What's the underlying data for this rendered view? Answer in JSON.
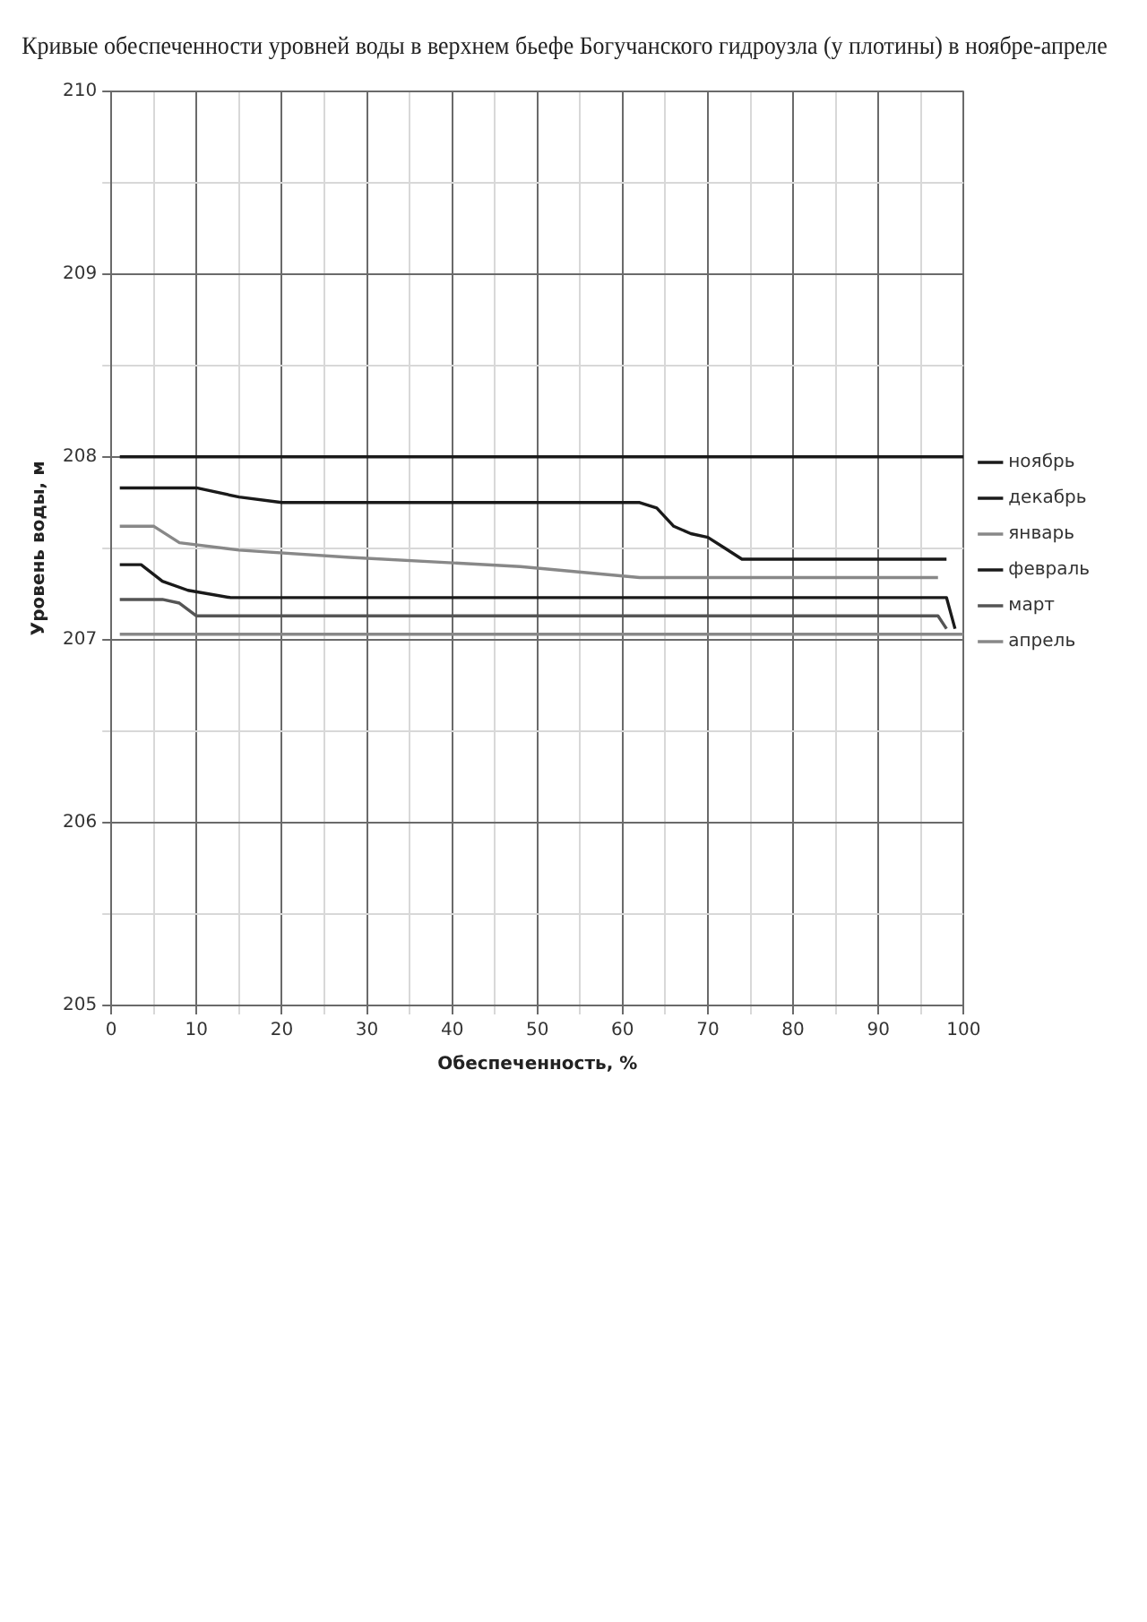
{
  "chart_data": {
    "type": "line",
    "title": "Кривые обеспеченности уровней воды в верхнем бьефе Богучанского гидроузла (у плотины) в ноябре-апреле",
    "xlabel": "Обеспеченность, %",
    "ylabel": "Уровень воды, м",
    "xlim": [
      0,
      100
    ],
    "xticks": [
      0,
      {
        "value": 5,
        "label": null
      },
      10,
      {
        "value": 15,
        "label": null
      },
      20,
      {
        "value": 25,
        "label": null
      },
      30,
      {
        "value": 35,
        "label": null
      },
      40,
      {
        "value": 45,
        "label": null
      },
      50,
      {
        "value": 55,
        "label": null
      },
      60,
      {
        "value": 65,
        "label": null
      },
      70,
      {
        "value": 75,
        "label": null
      },
      80,
      {
        "value": 85,
        "label": null
      },
      90,
      {
        "value": 95,
        "label": null
      },
      100
    ],
    "ylim": [
      205,
      210
    ],
    "yticks": [
      205,
      {
        "value": 205.5,
        "label": null
      },
      206,
      {
        "value": 206.5,
        "label": null
      },
      207,
      {
        "value": 207.5,
        "label": null
      },
      208,
      {
        "value": 208.5,
        "label": null
      },
      209,
      {
        "value": 209.5,
        "label": null
      },
      210
    ],
    "grid": true,
    "legend": "right",
    "marker": "none",
    "line_style": "solid",
    "series": [
      {
        "name": "ноябрь",
        "color": "#1a1a1a",
        "x": [
          1,
          100
        ],
        "values": [
          208.0,
          208.0
        ]
      },
      {
        "name": "декабрь",
        "color": "#1a1a1a",
        "x": [
          1,
          10,
          15,
          20,
          62,
          64,
          66,
          68,
          70,
          72,
          74,
          98
        ],
        "values": [
          207.83,
          207.83,
          207.78,
          207.75,
          207.75,
          207.72,
          207.62,
          207.58,
          207.56,
          207.5,
          207.44,
          207.44
        ]
      },
      {
        "name": "январь",
        "color": "#888888",
        "x": [
          1,
          5,
          8,
          15,
          28,
          48,
          62,
          97
        ],
        "values": [
          207.62,
          207.62,
          207.53,
          207.49,
          207.45,
          207.4,
          207.34,
          207.34
        ]
      },
      {
        "name": "февраль",
        "color": "#1a1a1a",
        "x": [
          1,
          3.5,
          6,
          9,
          14,
          98,
          99
        ],
        "values": [
          207.41,
          207.41,
          207.32,
          207.27,
          207.23,
          207.23,
          207.06
        ]
      },
      {
        "name": "март",
        "color": "#555555",
        "x": [
          1,
          6,
          8,
          10,
          97,
          98
        ],
        "values": [
          207.22,
          207.22,
          207.2,
          207.13,
          207.13,
          207.06
        ]
      },
      {
        "name": "апрель",
        "color": "#888888",
        "x": [
          1,
          100
        ],
        "values": [
          207.03,
          207.03
        ]
      }
    ]
  }
}
